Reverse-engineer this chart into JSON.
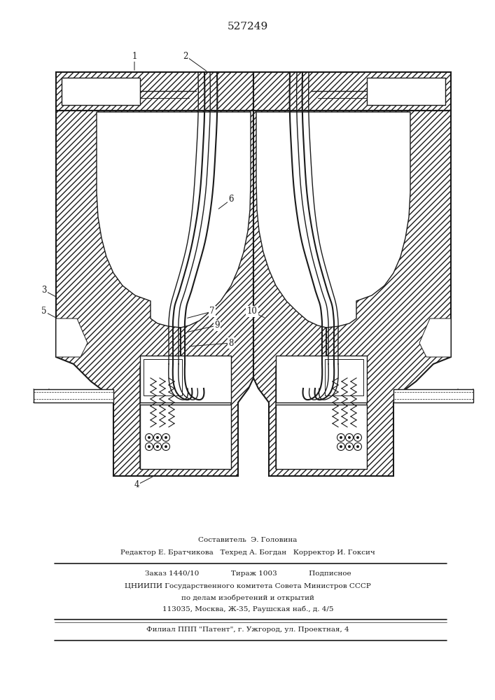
{
  "title_number": "527249",
  "background_color": "#ffffff",
  "line_color": "#1a1a1a",
  "fig_width": 7.07,
  "fig_height": 10.0,
  "footer_lines": [
    "Составитель  Э. Головина",
    "Редактор Е. Братчикова   Техред А. Богдан   Корректор И. Гоксич",
    "Заказ 1440/10              Тираж 1003              Подписное",
    "ЦНИИПИ Государственного комитета Совета Министров СССР",
    "по делам изобретений и открытий",
    "113035, Москва, Ж-35, Раушская наб., д. 4/5",
    "Филиал ППП \"Патент\", г. Ужгород, ул. Проектная, 4"
  ]
}
